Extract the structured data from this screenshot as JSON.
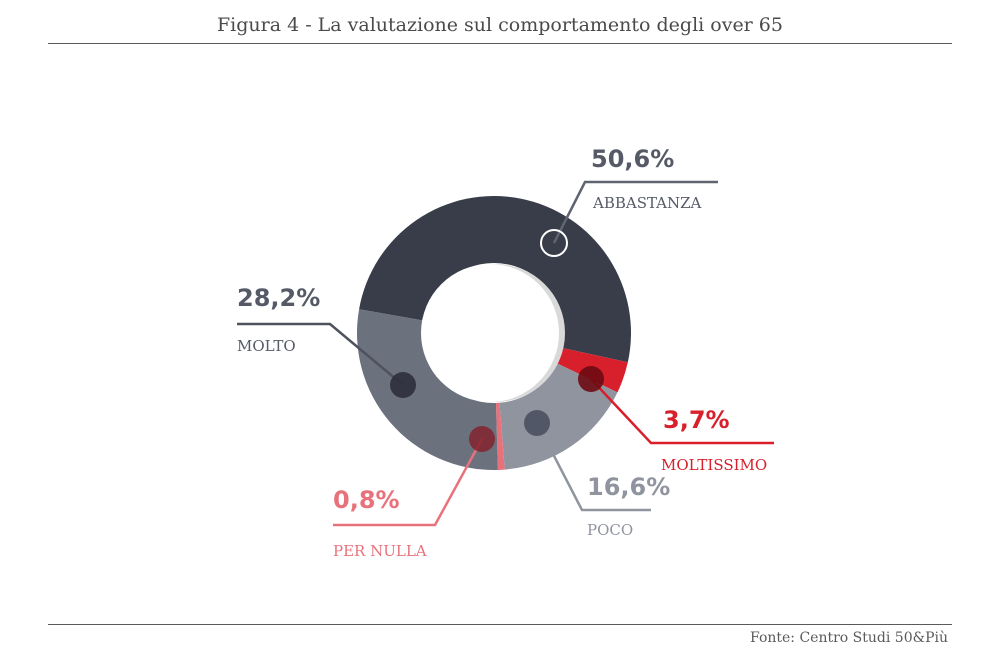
{
  "title": "Figura 4 - La valutazione sul comportamento degli over 65",
  "source": "Fonte: Centro Studi 50&Più",
  "colors": {
    "abbastanza": "#393d4a",
    "moltissimo": "#d7202b",
    "poco": "#8f949f",
    "per_nulla": "#e8727c",
    "molto": "#6c717e"
  },
  "chart_data": {
    "type": "pie",
    "title": "Figura 4 - La valutazione sul comportamento degli over 65",
    "slices": [
      {
        "label": "ABBASTANZA",
        "value": 50.6,
        "value_label": "50,6%"
      },
      {
        "label": "MOLTISSIMO",
        "value": 3.7,
        "value_label": "3,7%"
      },
      {
        "label": "POCO",
        "value": 16.6,
        "value_label": "16,6%"
      },
      {
        "label": "PER NULLA",
        "value": 0.8,
        "value_label": "0,8%"
      },
      {
        "label": "MOLTO",
        "value": 28.2,
        "value_label": "28,2%"
      }
    ]
  }
}
